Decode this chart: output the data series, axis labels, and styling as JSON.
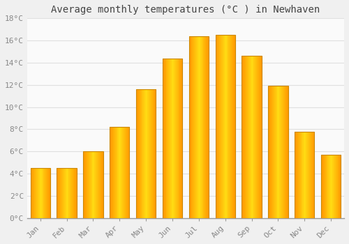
{
  "title": "Average monthly temperatures (°C ) in Newhaven",
  "months": [
    "Jan",
    "Feb",
    "Mar",
    "Apr",
    "May",
    "Jun",
    "Jul",
    "Aug",
    "Sep",
    "Oct",
    "Nov",
    "Dec"
  ],
  "values": [
    4.5,
    4.5,
    6.0,
    8.2,
    11.6,
    14.4,
    16.4,
    16.5,
    14.6,
    11.9,
    7.8,
    5.7
  ],
  "bar_color_left": "#FFAA00",
  "bar_color_center": "#FFD060",
  "bar_color_right": "#FF9900",
  "bar_edge_color": "#CC8800",
  "background_color": "#F0F0F0",
  "plot_bg_color": "#FAFAFA",
  "grid_color": "#E0E0E0",
  "ylim": [
    0,
    18
  ],
  "yticks": [
    0,
    2,
    4,
    6,
    8,
    10,
    12,
    14,
    16,
    18
  ],
  "ytick_labels": [
    "0°C",
    "2°C",
    "4°C",
    "6°C",
    "8°C",
    "10°C",
    "12°C",
    "14°C",
    "16°C",
    "18°C"
  ],
  "title_fontsize": 10,
  "tick_fontsize": 8,
  "tick_color": "#888888",
  "title_color": "#444444",
  "bar_width": 0.75
}
